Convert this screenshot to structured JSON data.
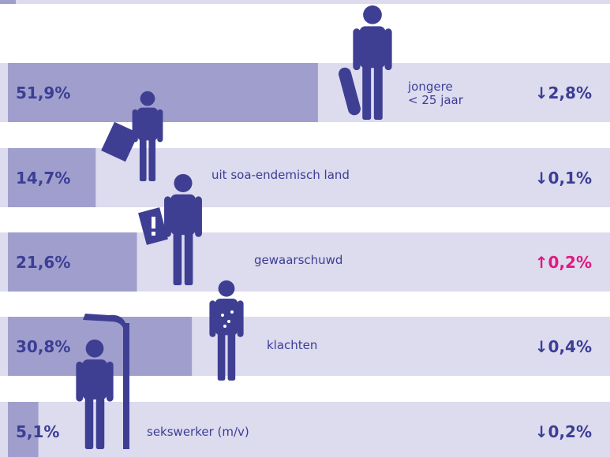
{
  "chart_data": {
    "type": "bar",
    "categories": [
      "jongere\n< 25 jaar",
      "uit soa-endemisch land",
      "gewaarschuwd",
      "klachten",
      "sekswerker (m/v)"
    ],
    "values": [
      51.9,
      14.7,
      21.6,
      30.8,
      5.1
    ],
    "value_labels": [
      "51,9%",
      "14,7%",
      "21,6%",
      "30,8%",
      "5,1%"
    ],
    "changes": [
      -2.8,
      -0.1,
      0.2,
      -0.4,
      -0.2
    ],
    "change_labels": [
      "↓2,8%",
      "↓0,1%",
      "↑0,2%",
      "↓0,4%",
      "↓0,2%"
    ],
    "xlim": [
      0,
      100
    ],
    "color": "#a09ecd",
    "background_color": "#dddbee",
    "up_color": "#e0187f",
    "down_color": "#3b3e95"
  }
}
